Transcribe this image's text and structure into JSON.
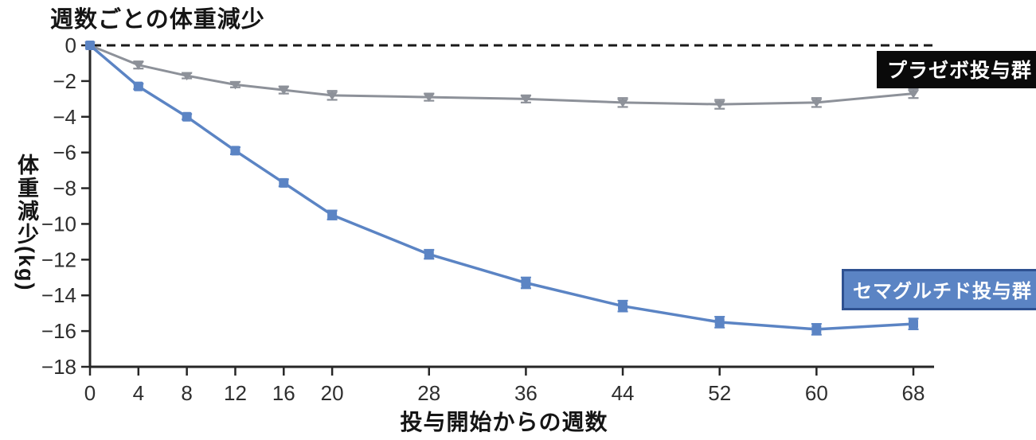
{
  "chart_data": {
    "type": "line",
    "title": "週数ごとの体重減少",
    "xlabel": "投与開始からの週数",
    "ylabel": "体重減少(kg)",
    "x": [
      0,
      4,
      8,
      12,
      16,
      20,
      28,
      36,
      44,
      52,
      60,
      68
    ],
    "x_tick_labels": [
      "0",
      "4",
      "8",
      "12",
      "16",
      "20",
      "28",
      "36",
      "44",
      "52",
      "60",
      "68"
    ],
    "y_ticks": [
      0,
      -2,
      -4,
      -6,
      -8,
      -10,
      -12,
      -14,
      -16,
      -18
    ],
    "y_tick_labels": [
      "0",
      "−2",
      "−4",
      "−6",
      "−8",
      "−10",
      "−12",
      "−14",
      "−16",
      "−18"
    ],
    "xlim": [
      0,
      69.7
    ],
    "ylim": [
      -18,
      0
    ],
    "grid": false,
    "baseline": {
      "y": 0,
      "style": "dashed",
      "color": "#1a1a1a"
    },
    "axis_color": "#262626",
    "tick_label_color": "#2e2e2e",
    "series": [
      {
        "name": "プラゼボ投与群",
        "color": "#8d9199",
        "marker": "triangle-down",
        "values": [
          0,
          -1.1,
          -1.7,
          -2.2,
          -2.5,
          -2.8,
          -2.9,
          -3.0,
          -3.2,
          -3.3,
          -3.2,
          -2.7
        ],
        "errors": [
          0,
          0.2,
          0.15,
          0.15,
          0.2,
          0.25,
          0.2,
          0.2,
          0.25,
          0.25,
          0.25,
          0.25
        ]
      },
      {
        "name": "セマグルチド投与群",
        "color": "#5b84c4",
        "marker": "square",
        "values": [
          0,
          -2.3,
          -4.0,
          -5.9,
          -7.7,
          -9.5,
          -11.7,
          -13.3,
          -14.6,
          -15.5,
          -15.9,
          -15.6
        ],
        "errors": [
          0,
          0.15,
          0.15,
          0.2,
          0.2,
          0.25,
          0.25,
          0.3,
          0.3,
          0.3,
          0.3,
          0.3
        ]
      }
    ],
    "legend": [
      {
        "label": "プラゼボ投与群",
        "bg": "#0a0a0a",
        "text_color": "#ffffff",
        "border": "none"
      },
      {
        "label": "セマグルチド投与群",
        "bg": "#5b84c4",
        "text_color": "#ffffff",
        "border": "#2e5191"
      }
    ],
    "legend_position": "right-inside"
  }
}
